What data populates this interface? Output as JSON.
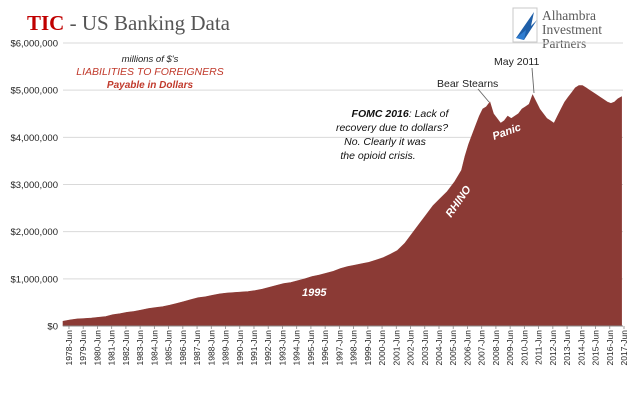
{
  "header": {
    "brand": "TIC",
    "title_rest": " - US Banking Data",
    "brand_color": "#c00000",
    "title_color": "#555555"
  },
  "logo": {
    "icon": "alhambra-bird-logo-icon",
    "lines": [
      "Alhambra",
      "Investment",
      "Partners"
    ]
  },
  "colors": {
    "area_fill": "#8b3a35",
    "grid": "#d9d9d9",
    "axis_text": "#222222",
    "annotation_red": "#c0392b",
    "white_label": "#ffffff"
  },
  "chart_data": {
    "type": "area",
    "title": "TIC - US Banking Data",
    "xlabel": "",
    "ylabel": "",
    "ylim": [
      0,
      6000000
    ],
    "yticks": [
      0,
      1000000,
      2000000,
      3000000,
      4000000,
      5000000,
      6000000
    ],
    "ytick_labels": [
      "$0",
      "$1,000,000",
      "$2,000,000",
      "$3,000,000",
      "$4,000,000",
      "$5,000,000",
      "$6,000,000"
    ],
    "xtick_labels": [
      "1978-Jun",
      "1979-Jun",
      "1980-Jun",
      "1981-Jun",
      "1982-Jun",
      "1983-Jun",
      "1984-Jun",
      "1985-Jun",
      "1986-Jun",
      "1987-Jun",
      "1988-Jun",
      "1989-Jun",
      "1990-Jun",
      "1991-Jun",
      "1992-Jun",
      "1993-Jun",
      "1994-Jun",
      "1995-Jun",
      "1996-Jun",
      "1997-Jun",
      "1998-Jun",
      "1999-Jun",
      "2000-Jun",
      "2001-Jun",
      "2002-Jun",
      "2003-Jun",
      "2004-Jun",
      "2005-Jun",
      "2006-Jun",
      "2007-Jun",
      "2008-Jun",
      "2009-Jun",
      "2010-Jun",
      "2011-Jun",
      "2012-Jun",
      "2013-Jun",
      "2014-Jun",
      "2015-Jun",
      "2016-Jun",
      "2017-Jun"
    ],
    "grid": true,
    "legend": "none",
    "series": [
      {
        "x": [
          1978.0,
          1978.5,
          1979.0,
          1979.5,
          1980.0,
          1980.5,
          1981.0,
          1981.5,
          1982.0,
          1982.5,
          1983.0,
          1983.5,
          1984.0,
          1984.5,
          1985.0,
          1985.5,
          1986.0,
          1986.5,
          1987.0,
          1987.5,
          1988.0,
          1988.5,
          1989.0,
          1989.5,
          1990.0,
          1990.5,
          1991.0,
          1991.5,
          1992.0,
          1992.5,
          1993.0,
          1993.5,
          1994.0,
          1994.5,
          1995.0,
          1995.5,
          1996.0,
          1996.5,
          1997.0,
          1997.5,
          1998.0,
          1998.5,
          1999.0,
          1999.5,
          2000.0,
          2000.5,
          2001.0,
          2001.5,
          2002.0,
          2002.5,
          2003.0,
          2003.5,
          2004.0,
          2004.5,
          2005.0,
          2005.5,
          2006.0,
          2006.25,
          2006.5,
          2006.75,
          2007.0,
          2007.25,
          2007.5,
          2007.75,
          2008.0,
          2008.25,
          2008.5,
          2008.75,
          2009.0,
          2009.25,
          2009.5,
          2009.75,
          2010.0,
          2010.25,
          2010.5,
          2010.75,
          2011.0,
          2011.25,
          2011.5,
          2011.75,
          2012.0,
          2012.25,
          2012.5,
          2012.75,
          2013.0,
          2013.25,
          2013.5,
          2013.75,
          2014.0,
          2014.25,
          2014.5,
          2014.75,
          2015.0,
          2015.25,
          2015.5,
          2015.75,
          2016.0,
          2016.25,
          2016.5,
          2016.75,
          2017.0,
          2017.25
        ],
        "values": [
          100000,
          130000,
          150000,
          160000,
          170000,
          185000,
          200000,
          240000,
          260000,
          290000,
          310000,
          340000,
          370000,
          390000,
          410000,
          440000,
          480000,
          520000,
          560000,
          600000,
          620000,
          650000,
          680000,
          700000,
          710000,
          720000,
          730000,
          750000,
          780000,
          820000,
          860000,
          900000,
          920000,
          960000,
          1000000,
          1050000,
          1080000,
          1120000,
          1160000,
          1220000,
          1260000,
          1290000,
          1320000,
          1350000,
          1400000,
          1450000,
          1520000,
          1600000,
          1750000,
          1950000,
          2150000,
          2350000,
          2550000,
          2700000,
          2850000,
          3050000,
          3300000,
          3600000,
          3850000,
          4050000,
          4250000,
          4450000,
          4600000,
          4650000,
          4750000,
          4500000,
          4400000,
          4300000,
          4350000,
          4450000,
          4400000,
          4450000,
          4500000,
          4600000,
          4650000,
          4700000,
          4900000,
          4750000,
          4600000,
          4500000,
          4400000,
          4350000,
          4300000,
          4450000,
          4600000,
          4750000,
          4850000,
          4950000,
          5050000,
          5100000,
          5100000,
          5050000,
          5000000,
          4950000,
          4900000,
          4850000,
          4800000,
          4750000,
          4720000,
          4750000,
          4820000,
          4860000
        ]
      }
    ],
    "annotations": {
      "units_line": "millions of $'s",
      "label_line1": "LIABILITIES TO FOREIGNERS",
      "label_line2": "Payable in Dollars",
      "bear_stearns": "Bear Stearns",
      "may_2011": "May 2011",
      "fomc_bold": "FOMC 2016",
      "fomc_rest": ": Lack of",
      "fomc_line2": "recovery due to dollars?",
      "fomc_line3": "No. Clearly it was",
      "fomc_line4": "the opioid crisis.",
      "panic": "Panic",
      "rhino": "RHINO",
      "year_1995": "1995"
    }
  }
}
